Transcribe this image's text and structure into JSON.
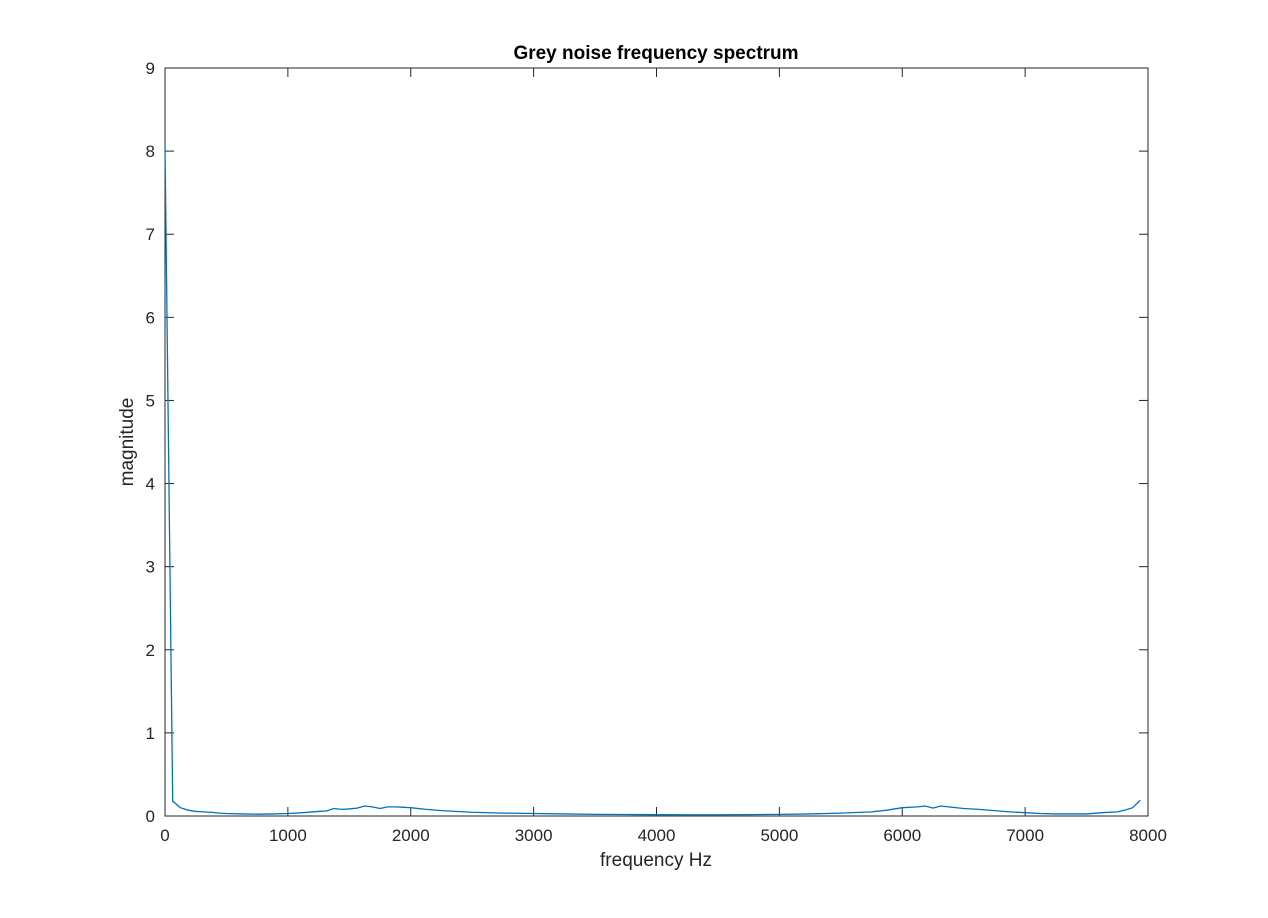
{
  "chart_data": {
    "type": "line",
    "title": "Grey noise frequency spectrum",
    "xlabel": "frequency Hz",
    "ylabel": "magnitude",
    "xlim": [
      0,
      8000
    ],
    "ylim": [
      0,
      9
    ],
    "xticks": [
      0,
      1000,
      2000,
      3000,
      4000,
      5000,
      6000,
      7000,
      8000
    ],
    "yticks": [
      0,
      1,
      2,
      3,
      4,
      5,
      6,
      7,
      8,
      9
    ],
    "grid": false,
    "line_color": "#0072BD",
    "series": [
      {
        "x": [
          0,
          62.5,
          125,
          187.5,
          250,
          312.5,
          375,
          437.5,
          500,
          625,
          750,
          875,
          1000,
          1125,
          1250,
          1312.5,
          1375,
          1437.5,
          1500,
          1562.5,
          1625,
          1687.5,
          1750,
          1812.5,
          1875,
          2000,
          2125,
          2250,
          2500,
          2750,
          3000,
          3250,
          3500,
          3750,
          4000,
          4250,
          4500,
          4750,
          5000,
          5250,
          5500,
          5750,
          5875,
          6000,
          6125,
          6187.5,
          6250,
          6312.5,
          6375,
          6500,
          6625,
          6750,
          6875,
          7000,
          7125,
          7250,
          7500,
          7625,
          7750,
          7812.5,
          7875,
          7937.5
        ],
        "y": [
          8.05,
          0.18,
          0.1,
          0.07,
          0.055,
          0.05,
          0.045,
          0.035,
          0.03,
          0.025,
          0.022,
          0.025,
          0.03,
          0.04,
          0.055,
          0.06,
          0.09,
          0.08,
          0.085,
          0.095,
          0.12,
          0.11,
          0.09,
          0.11,
          0.11,
          0.1,
          0.08,
          0.065,
          0.045,
          0.035,
          0.03,
          0.025,
          0.02,
          0.018,
          0.016,
          0.015,
          0.015,
          0.017,
          0.02,
          0.025,
          0.035,
          0.05,
          0.07,
          0.1,
          0.11,
          0.12,
          0.095,
          0.12,
          0.11,
          0.09,
          0.08,
          0.065,
          0.05,
          0.04,
          0.03,
          0.025,
          0.025,
          0.04,
          0.05,
          0.07,
          0.1,
          0.19
        ]
      }
    ]
  }
}
